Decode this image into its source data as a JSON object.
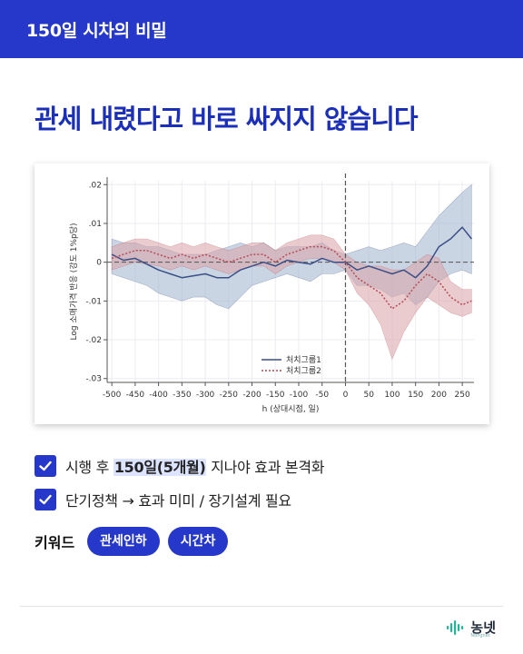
{
  "header": {
    "title": "150일 시차의 비밀"
  },
  "headline": "관세 내렸다고 바로 싸지지 않습니다",
  "chart_data": {
    "type": "line",
    "xlabel": "h (상대시점, 일)",
    "ylabel": "Log 소매가격 반응 (강도 1%p당)",
    "xlim": [
      -510,
      275
    ],
    "ylim": [
      -0.031,
      0.021
    ],
    "x_ticks": [
      -500,
      -450,
      -400,
      -350,
      -300,
      -250,
      -200,
      -150,
      -100,
      -50,
      0,
      50,
      100,
      150,
      200,
      250
    ],
    "y_ticks": [
      0.02,
      0.01,
      0,
      -0.01,
      -0.02,
      -0.03
    ],
    "y_tick_labels": [
      ".02",
      ".01",
      "0",
      "-.01",
      "-.02",
      "-.03"
    ],
    "event_line_x": 0,
    "zero_line_y": 0,
    "legend_position": "bottom-right",
    "series": [
      {
        "name": "처치그룹1",
        "style": "solid",
        "color": "#3b4f86",
        "band_color": "#9fb3cc",
        "x": [
          -500,
          -475,
          -450,
          -425,
          -400,
          -375,
          -350,
          -325,
          -300,
          -275,
          -250,
          -225,
          -200,
          -175,
          -150,
          -125,
          -100,
          -75,
          -50,
          -25,
          0,
          25,
          50,
          75,
          100,
          125,
          150,
          175,
          200,
          225,
          250,
          270
        ],
        "y": [
          0.002,
          0.0005,
          0.001,
          -0.0005,
          -0.002,
          -0.003,
          -0.004,
          -0.0035,
          -0.003,
          -0.004,
          -0.004,
          -0.002,
          -0.001,
          0.0,
          -0.001,
          0.0005,
          0.0,
          -0.0005,
          0.001,
          0.0,
          0.0,
          -0.002,
          -0.001,
          -0.002,
          -0.003,
          -0.002,
          -0.004,
          -0.001,
          0.004,
          0.006,
          0.009,
          0.006
        ],
        "lower": [
          -0.003,
          -0.004,
          -0.005,
          -0.006,
          -0.008,
          -0.009,
          -0.01,
          -0.009,
          -0.009,
          -0.011,
          -0.012,
          -0.009,
          -0.006,
          -0.005,
          -0.004,
          -0.003,
          -0.004,
          -0.005,
          -0.003,
          -0.003,
          -0.002,
          -0.006,
          -0.006,
          -0.007,
          -0.009,
          -0.008,
          -0.011,
          -0.009,
          -0.005,
          -0.003,
          -0.002,
          -0.003
        ],
        "upper": [
          0.006,
          0.005,
          0.005,
          0.004,
          0.004,
          0.003,
          0.002,
          0.002,
          0.002,
          0.003,
          0.004,
          0.005,
          0.004,
          0.005,
          0.003,
          0.004,
          0.004,
          0.004,
          0.005,
          0.003,
          0.002,
          0.003,
          0.004,
          0.003,
          0.004,
          0.005,
          0.004,
          0.008,
          0.012,
          0.015,
          0.018,
          0.02
        ]
      },
      {
        "name": "처치그룹2",
        "style": "dotted",
        "color": "#b84a56",
        "band_color": "#d9a3a8",
        "x": [
          -500,
          -475,
          -450,
          -425,
          -400,
          -375,
          -350,
          -325,
          -300,
          -275,
          -250,
          -225,
          -200,
          -175,
          -150,
          -125,
          -100,
          -75,
          -50,
          -25,
          0,
          25,
          50,
          75,
          100,
          125,
          150,
          175,
          200,
          225,
          250,
          270
        ],
        "y": [
          0.001,
          0.002,
          0.003,
          0.003,
          0.002,
          0.001,
          0.002,
          0.001,
          0.002,
          0.001,
          0.0,
          0.001,
          0.002,
          0.002,
          0.0,
          0.002,
          0.003,
          0.004,
          0.004,
          0.003,
          0.0,
          -0.004,
          -0.006,
          -0.008,
          -0.012,
          -0.01,
          -0.006,
          -0.003,
          -0.005,
          -0.009,
          -0.011,
          -0.01
        ],
        "lower": [
          -0.002,
          -0.001,
          0.0,
          -0.0005,
          -0.001,
          -0.002,
          -0.001,
          -0.002,
          -0.001,
          -0.002,
          -0.003,
          -0.002,
          -0.001,
          -0.001,
          -0.003,
          -0.001,
          0.0,
          0.001,
          0.001,
          0.0,
          -0.002,
          -0.008,
          -0.011,
          -0.016,
          -0.025,
          -0.018,
          -0.013,
          -0.009,
          -0.011,
          -0.013,
          -0.014,
          -0.013
        ],
        "upper": [
          0.004,
          0.005,
          0.006,
          0.006,
          0.005,
          0.004,
          0.005,
          0.004,
          0.005,
          0.004,
          0.003,
          0.004,
          0.005,
          0.005,
          0.003,
          0.005,
          0.006,
          0.007,
          0.007,
          0.006,
          0.002,
          0.0,
          -0.001,
          -0.001,
          -0.002,
          -0.002,
          0.0,
          0.002,
          0.001,
          -0.005,
          -0.007,
          -0.007
        ]
      }
    ]
  },
  "checklist": [
    {
      "prefix": "시행 후 ",
      "highlight": "150일(5개월)",
      "suffix": " 지나야 효과 본격화"
    },
    {
      "text": "단기정책 → 효과 미미 / 장기설계 필요"
    }
  ],
  "keywords": {
    "label": "키워드",
    "tags": [
      "관세인하",
      "시간차"
    ]
  },
  "logo": {
    "text": "농넷",
    "sub": "Nongnet"
  },
  "colors": {
    "brand": "#2638c9",
    "headline": "#1b2fb8"
  }
}
